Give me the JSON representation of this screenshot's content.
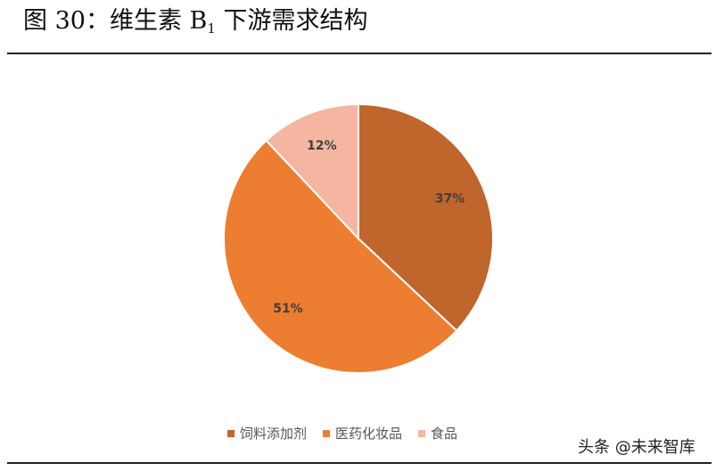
{
  "title": {
    "main": "图 30：维生素 B",
    "subscript": "1",
    "rest": " 下游需求结构"
  },
  "watermark": "头条 @未来智库",
  "chart_data": {
    "type": "pie",
    "categories": [
      "饲料添加剂",
      "医药化妆品",
      "食品"
    ],
    "values": [
      37,
      51,
      12
    ],
    "value_labels": [
      "37%",
      "51%",
      "12%"
    ],
    "colors": [
      "#C0652B",
      "#ED7D31",
      "#F4B6A0"
    ],
    "start": "12 o'clock",
    "direction": "clockwise",
    "legend_position": "bottom"
  }
}
